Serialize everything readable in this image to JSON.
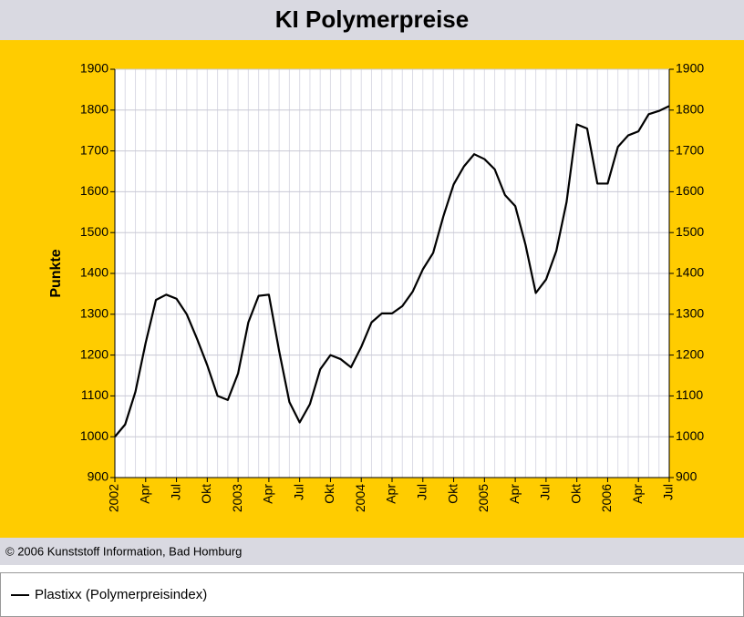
{
  "chart_data": {
    "type": "line",
    "title": "KI Polymerpreise",
    "ylabel": "Punkte",
    "footer": "© 2006 Kunststoff Information, Bad Homburg",
    "categories": [
      "2002",
      null,
      null,
      "Apr",
      null,
      null,
      "Jul",
      null,
      null,
      "Okt",
      null,
      null,
      "2003",
      null,
      null,
      "Apr",
      null,
      null,
      "Jul",
      null,
      null,
      "Okt",
      null,
      null,
      "2004",
      null,
      null,
      "Apr",
      null,
      null,
      "Jul",
      null,
      null,
      "Okt",
      null,
      null,
      "2005",
      null,
      null,
      "Apr",
      null,
      null,
      "Jul",
      null,
      null,
      "Okt",
      null,
      null,
      "2006",
      null,
      null,
      "Apr",
      null,
      null,
      "Jul"
    ],
    "series": [
      {
        "name": "Plastixx (Polymerpreisindex)",
        "color": "#000000",
        "values": [
          1000,
          1030,
          1110,
          1230,
          1335,
          1348,
          1338,
          1300,
          1240,
          1175,
          1100,
          1090,
          1155,
          1280,
          1345,
          1348,
          1210,
          1085,
          1035,
          1080,
          1165,
          1200,
          1190,
          1170,
          1220,
          1280,
          1302,
          1302,
          1320,
          1355,
          1410,
          1450,
          1540,
          1618,
          1662,
          1692,
          1680,
          1655,
          1592,
          1565,
          1470,
          1352,
          1385,
          1455,
          1575,
          1765,
          1755,
          1620,
          1620,
          1710,
          1738,
          1748,
          1790,
          1798,
          1810
        ]
      }
    ],
    "ylim": [
      900,
      1900
    ],
    "yticks": [
      900,
      1000,
      1100,
      1200,
      1300,
      1400,
      1500,
      1600,
      1700,
      1800,
      1900
    ],
    "grid": true
  }
}
